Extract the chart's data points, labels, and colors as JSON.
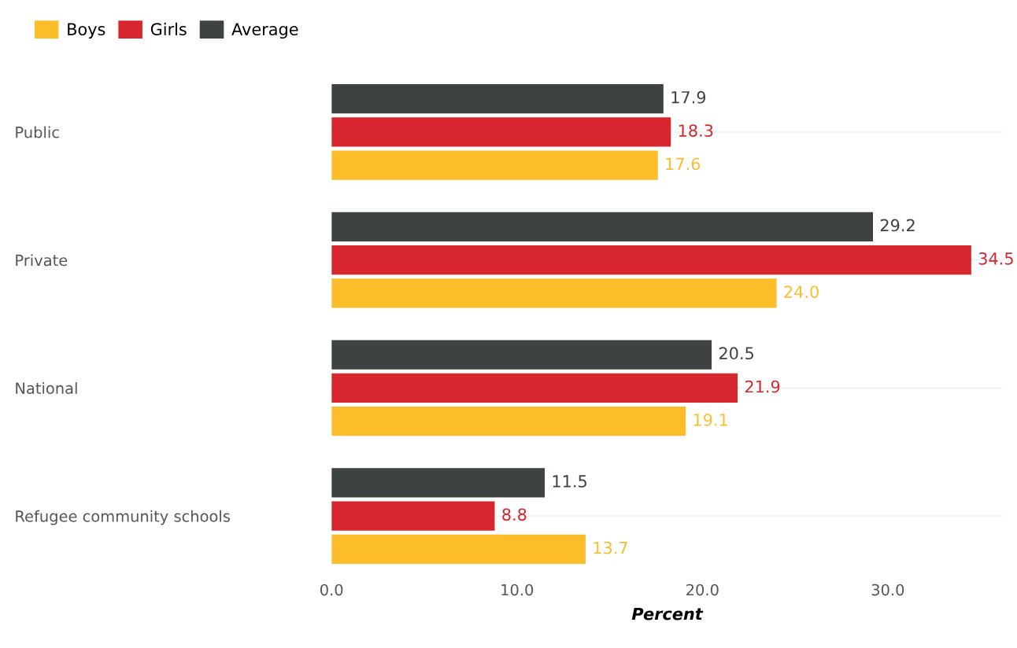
{
  "chart_data": {
    "type": "bar",
    "orientation": "horizontal",
    "xlabel": "Percent",
    "categories": [
      "Public",
      "Private",
      "National",
      "Refugee community schools"
    ],
    "series": [
      {
        "name": "Boys",
        "color": "#fbbd2a",
        "values": [
          17.6,
          24.0,
          19.1,
          13.7
        ],
        "value_labels": [
          "17.6",
          "24.0",
          "19.1",
          "13.7"
        ]
      },
      {
        "name": "Girls",
        "color": "#d7262d",
        "values": [
          18.3,
          34.5,
          21.9,
          8.8
        ],
        "value_labels": [
          "18.3",
          "34.5",
          "21.9",
          "8.8"
        ]
      },
      {
        "name": "Average",
        "color": "#3d4342",
        "values": [
          17.9,
          29.2,
          20.5,
          11.5
        ],
        "value_labels": [
          "17.9",
          "29.2",
          "20.5",
          "11.5"
        ]
      }
    ],
    "xlim": [
      0,
      36.2
    ],
    "xticks": [
      {
        "value": 0,
        "label": "0.0"
      },
      {
        "value": 10,
        "label": "10.0"
      },
      {
        "value": 20,
        "label": "20.0"
      },
      {
        "value": 30,
        "label": "30.0"
      }
    ],
    "grid": "y",
    "legend": "top left"
  }
}
